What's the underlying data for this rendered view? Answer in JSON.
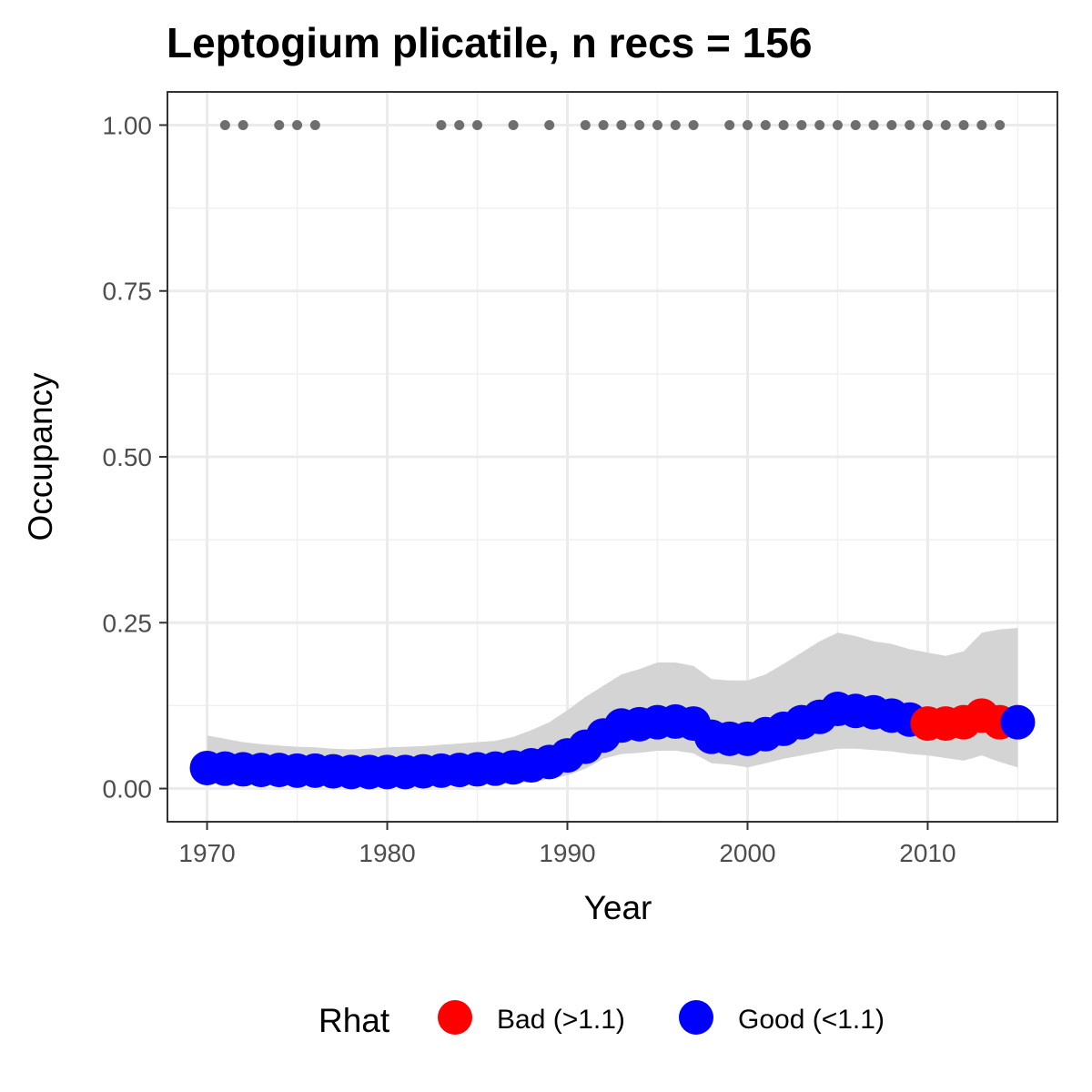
{
  "chart_data": {
    "type": "line",
    "title": "Leptogium plicatile, n recs = 156",
    "xlabel": "Year",
    "ylabel": "Occupancy",
    "xlim": [
      1967.8,
      2017.2
    ],
    "ylim": [
      -0.05,
      1.05
    ],
    "x_ticks": [
      1970,
      1980,
      1990,
      2000,
      2010
    ],
    "x_tick_labels": [
      "1970",
      "1980",
      "1990",
      "2000",
      "2010"
    ],
    "y_ticks": [
      0,
      0.25,
      0.5,
      0.75,
      1.0
    ],
    "y_tick_labels": [
      "0.00",
      "0.25",
      "0.50",
      "0.75",
      "1.00"
    ],
    "grid": true,
    "legend": {
      "title": "Rhat",
      "position": "bottom",
      "entries": [
        {
          "label": "Bad (>1.1)",
          "color": "#ff0000"
        },
        {
          "label": "Good (<1.1)",
          "color": "#0000ff"
        }
      ]
    },
    "colors": {
      "bad": "#ff0000",
      "good": "#0000ff",
      "ribbon": "#d4d4d4",
      "records": "#6e6e6e"
    },
    "series": [
      {
        "years": [
          1970,
          1971,
          1972,
          1973,
          1974,
          1975,
          1976,
          1977,
          1978,
          1979,
          1980,
          1981,
          1982,
          1983,
          1984,
          1985,
          1986,
          1987,
          1988,
          1989,
          1990,
          1991,
          1992,
          1993,
          1994,
          1995,
          1996,
          1997,
          1998,
          1999,
          2000,
          2001,
          2002,
          2003,
          2004,
          2005,
          2006,
          2007,
          2008,
          2009,
          2010,
          2011,
          2012,
          2013,
          2014,
          2015
        ],
        "occupancy": [
          0.031,
          0.03,
          0.029,
          0.028,
          0.028,
          0.027,
          0.027,
          0.026,
          0.025,
          0.025,
          0.025,
          0.025,
          0.026,
          0.027,
          0.028,
          0.029,
          0.03,
          0.032,
          0.035,
          0.04,
          0.05,
          0.063,
          0.08,
          0.095,
          0.097,
          0.1,
          0.101,
          0.098,
          0.078,
          0.075,
          0.075,
          0.082,
          0.09,
          0.1,
          0.108,
          0.12,
          0.117,
          0.115,
          0.11,
          0.104,
          0.098,
          0.098,
          0.1,
          0.11,
          0.1,
          0.1
        ],
        "lower": [
          0.01,
          0.01,
          0.008,
          0.008,
          0.007,
          0.007,
          0.006,
          0.006,
          0.006,
          0.005,
          0.005,
          0.005,
          0.006,
          0.006,
          0.006,
          0.007,
          0.007,
          0.008,
          0.01,
          0.014,
          0.02,
          0.03,
          0.045,
          0.052,
          0.054,
          0.057,
          0.057,
          0.053,
          0.038,
          0.036,
          0.032,
          0.038,
          0.045,
          0.05,
          0.055,
          0.06,
          0.06,
          0.058,
          0.056,
          0.052,
          0.05,
          0.046,
          0.042,
          0.05,
          0.04,
          0.032
        ],
        "upper": [
          0.08,
          0.075,
          0.07,
          0.067,
          0.065,
          0.063,
          0.062,
          0.06,
          0.059,
          0.06,
          0.062,
          0.063,
          0.064,
          0.066,
          0.068,
          0.07,
          0.072,
          0.078,
          0.088,
          0.1,
          0.118,
          0.138,
          0.155,
          0.172,
          0.18,
          0.19,
          0.19,
          0.185,
          0.165,
          0.163,
          0.163,
          0.172,
          0.188,
          0.205,
          0.222,
          0.235,
          0.23,
          0.222,
          0.218,
          0.21,
          0.205,
          0.2,
          0.207,
          0.235,
          0.24,
          0.242
        ],
        "rhat": [
          "good",
          "good",
          "good",
          "good",
          "good",
          "good",
          "good",
          "good",
          "good",
          "good",
          "good",
          "good",
          "good",
          "good",
          "good",
          "good",
          "good",
          "good",
          "good",
          "good",
          "good",
          "good",
          "good",
          "good",
          "good",
          "good",
          "good",
          "good",
          "good",
          "good",
          "good",
          "good",
          "good",
          "good",
          "good",
          "good",
          "good",
          "good",
          "good",
          "good",
          "bad",
          "bad",
          "bad",
          "bad",
          "bad",
          "good"
        ]
      }
    ],
    "records": {
      "y": 1.0,
      "years": [
        1971,
        1972,
        1974,
        1975,
        1976,
        1983,
        1984,
        1985,
        1987,
        1989,
        1991,
        1992,
        1993,
        1994,
        1995,
        1996,
        1997,
        1999,
        2000,
        2001,
        2002,
        2003,
        2004,
        2005,
        2006,
        2007,
        2008,
        2009,
        2010,
        2011,
        2012,
        2013,
        2014
      ]
    }
  }
}
